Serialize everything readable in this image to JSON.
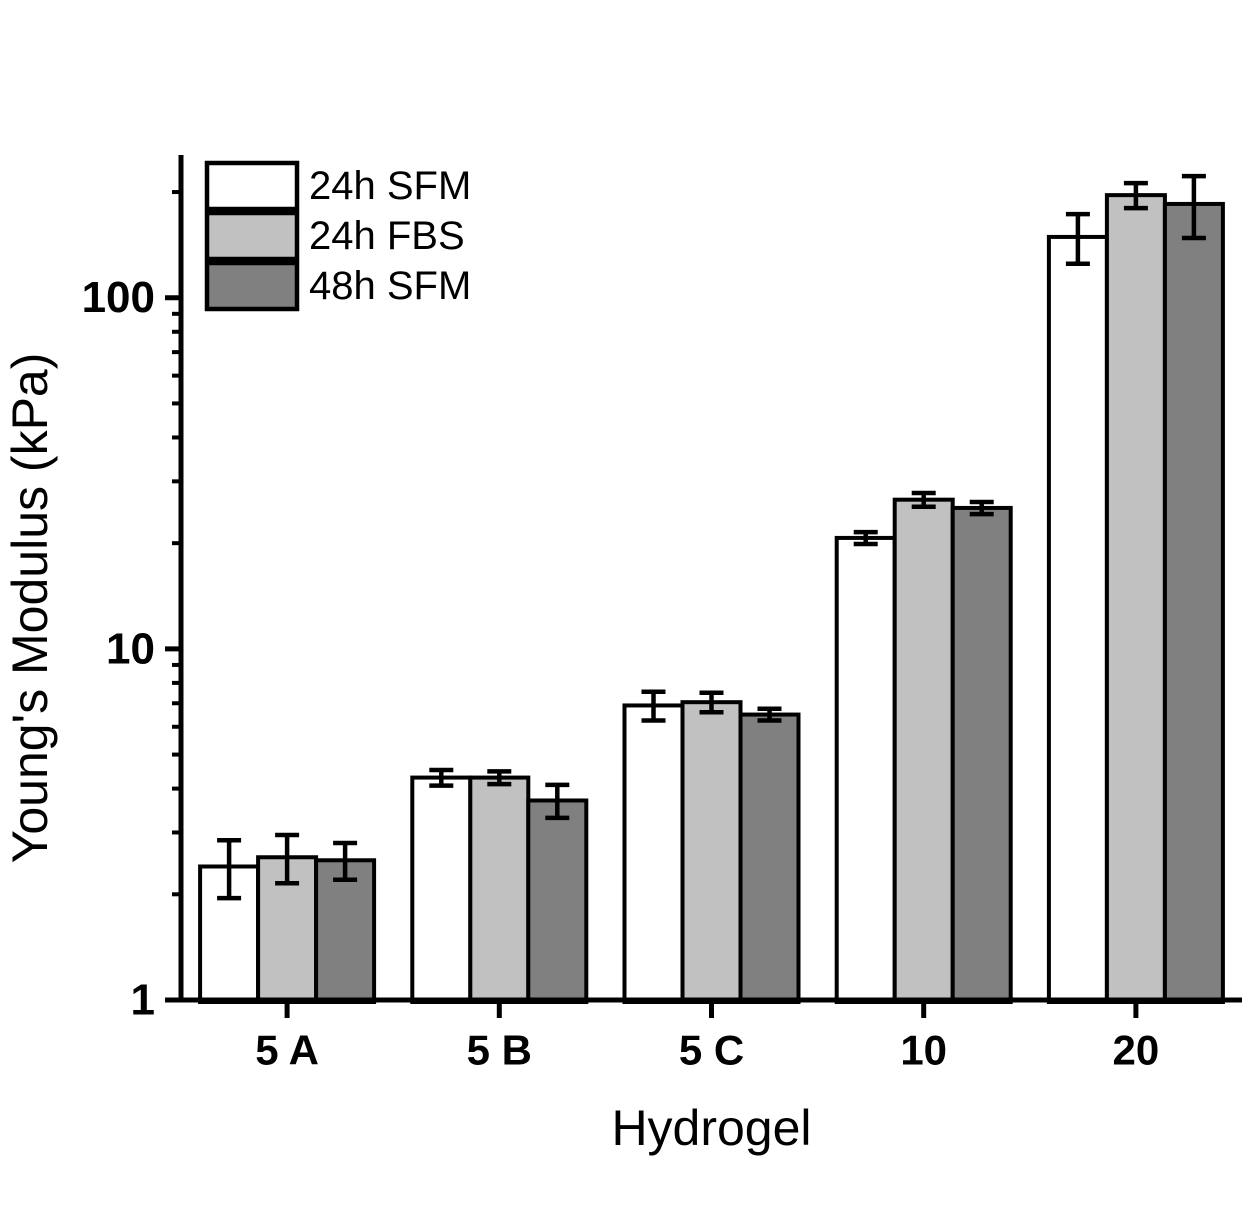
{
  "figure": {
    "background": "#ffffff",
    "text_color": "#000000",
    "axis_color": "#000000"
  },
  "chart_data": {
    "type": "bar",
    "title": "",
    "xlabel": "Hydrogel",
    "ylabel": "Young's Modulus (kPa)",
    "yscale": "log",
    "ylim": [
      1,
      255
    ],
    "ytick_labels": [
      "1",
      "10",
      "100"
    ],
    "yticks_major": [
      1,
      10,
      100
    ],
    "grid": false,
    "legend_position": "top-left",
    "categories": [
      "5 A",
      "5 B",
      "5 C",
      "10",
      "20"
    ],
    "series": [
      {
        "name": "24h SFM",
        "fill": "#ffffff",
        "values": [
          2.4,
          4.3,
          6.9,
          20.7,
          149
        ],
        "err": [
          0.45,
          0.22,
          0.65,
          0.8,
          24
        ]
      },
      {
        "name": "24h FBS",
        "fill": "#c1c1c1",
        "values": [
          2.55,
          4.3,
          7.05,
          26.6,
          196
        ],
        "err": [
          0.4,
          0.18,
          0.45,
          1.2,
          16
        ]
      },
      {
        "name": "48h SFM",
        "fill": "#808080",
        "values": [
          2.5,
          3.7,
          6.5,
          25.2,
          185
        ],
        "err": [
          0.3,
          0.4,
          0.25,
          1.0,
          37
        ]
      }
    ]
  }
}
